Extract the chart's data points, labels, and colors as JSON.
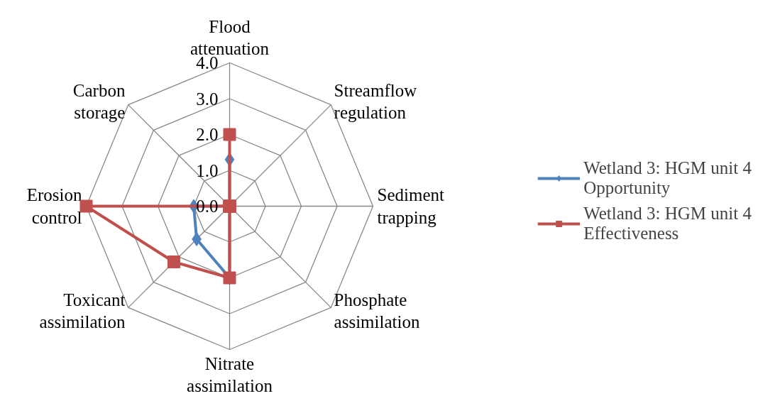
{
  "chart_data": {
    "type": "radar",
    "categories": [
      "Flood attenuation",
      "Streamflow regulation",
      "Sediment trapping",
      "Phosphate assimilation",
      "Nitrate assimilation",
      "Toxicant assimilation",
      "Erosion control",
      "Carbon storage"
    ],
    "series": [
      {
        "name": "Wetland 3: HGM unit 4 Opportunity",
        "color": "#4f81bd",
        "marker": "diamond",
        "values": [
          1.3,
          0,
          0,
          0,
          2.0,
          1.3,
          1.0,
          0
        ]
      },
      {
        "name": "Wetland 3: HGM unit 4 Effectiveness",
        "color": "#c0504d",
        "marker": "square",
        "values": [
          2.0,
          0,
          0,
          0,
          2.0,
          2.2,
          4.0,
          0
        ]
      }
    ],
    "ylim": [
      0,
      4
    ],
    "yticks": [
      {
        "value": 0,
        "label": "0.0"
      },
      {
        "value": 1,
        "label": "1.0"
      },
      {
        "value": 2,
        "label": "2.0"
      },
      {
        "value": 3,
        "label": "3.0"
      },
      {
        "value": 4,
        "label": "4.0"
      }
    ],
    "grid": true,
    "legend": "right"
  }
}
